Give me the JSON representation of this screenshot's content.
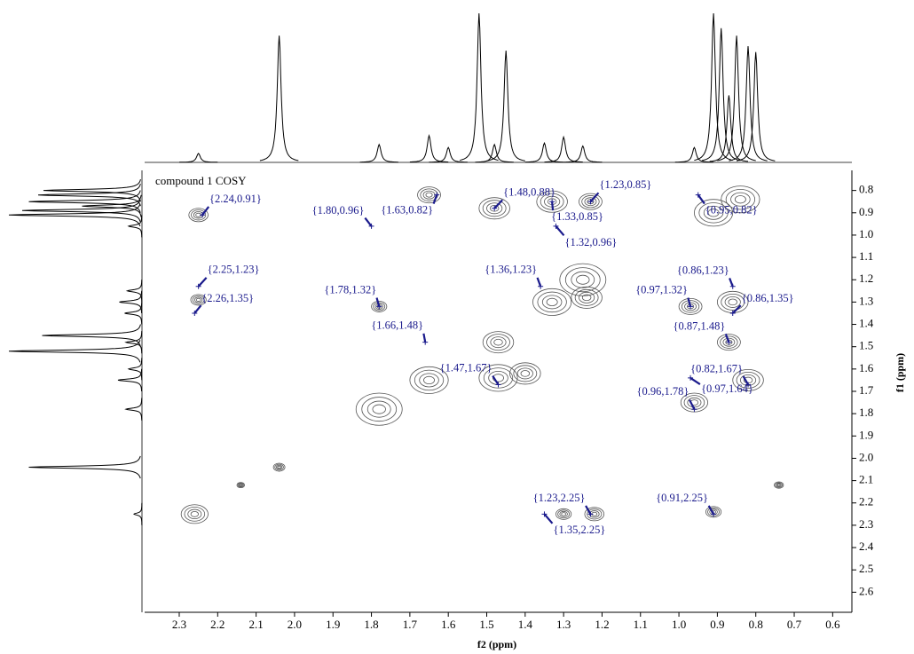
{
  "chart_data": {
    "type": "cosy",
    "title": "compound 1 COSY",
    "xlabel": "f2 (ppm)",
    "ylabel": "f1 (ppm)",
    "xlim": [
      2.39,
      0.55
    ],
    "ylim": [
      0.71,
      2.69
    ],
    "xticks": [
      2.3,
      2.2,
      2.1,
      {
        "value": 2,
        "label": "2.0"
      },
      1.9,
      1.8,
      1.7,
      1.6,
      1.5,
      1.4,
      1.3,
      1.2,
      1.1,
      {
        "value": 1,
        "label": "1.0"
      },
      0.9,
      0.8,
      0.7,
      0.6
    ],
    "yticks": [
      0.8,
      0.9,
      {
        "value": 1,
        "label": "1.0"
      },
      1.1,
      1.2,
      1.3,
      1.4,
      1.5,
      1.6,
      1.7,
      1.8,
      1.9,
      {
        "value": 2,
        "label": "2.0"
      },
      2.1,
      2.2,
      2.3,
      2.4,
      2.5,
      2.6
    ],
    "peaks": {
      "x": [
        2.24,
        1.8,
        1.63,
        1.48,
        1.23,
        1.33,
        1.32,
        0.95,
        2.25,
        2.26,
        1.78,
        1.66,
        1.36,
        0.86,
        0.97,
        0.86,
        0.87,
        1.47,
        0.82,
        0.97,
        0.96,
        1.23,
        1.35,
        0.91
      ],
      "y": [
        0.91,
        0.96,
        0.82,
        0.88,
        0.85,
        0.85,
        0.96,
        0.82,
        1.23,
        1.35,
        1.32,
        1.48,
        1.23,
        1.23,
        1.32,
        1.35,
        1.48,
        1.67,
        1.67,
        1.64,
        1.78,
        2.25,
        2.25,
        2.25
      ],
      "labels": [
        "{2.24,0.91}",
        "{1.80,0.96}",
        "{1.63,0.82}",
        "{1.48,0.88}",
        "{1.23,0.85}",
        "{1.33,0.85}",
        "{1.32,0.96}",
        "{0.95,0.82}",
        "{2.25,1.23}",
        "{2.26,1.35}",
        "{1.78,1.32}",
        "{1.66,1.48}",
        "{1.36,1.23}",
        "{0.86,1.23}",
        "{0.97,1.32}",
        "{0.86,1.35}",
        "{0.87,1.48}",
        "{1.47,1.67}",
        "{0.82,1.67}",
        "{0.97,1.64}",
        "{0.96,1.78}",
        "{1.23,2.25}",
        "{1.35,2.25}",
        "{0.91,2.25}"
      ]
    },
    "contours": {
      "x": [
        2.25,
        1.65,
        1.48,
        1.33,
        1.23,
        0.91,
        0.84,
        2.25,
        1.78,
        1.33,
        1.24,
        1.47,
        0.97,
        0.86,
        0.87,
        1.47,
        1.78,
        1.65,
        0.96,
        0.82,
        2.26,
        2.04,
        2.14,
        1.3,
        1.22,
        0.91,
        0.74,
        1.25,
        1.4
      ],
      "y": [
        0.91,
        0.82,
        0.88,
        0.85,
        0.85,
        0.9,
        0.84,
        1.29,
        1.32,
        1.3,
        1.28,
        1.48,
        1.32,
        1.3,
        1.48,
        1.64,
        1.78,
        1.65,
        1.75,
        1.65,
        2.25,
        2.04,
        2.12,
        2.25,
        2.25,
        2.24,
        2.12,
        1.2,
        1.62
      ],
      "r": [
        0.025,
        0.03,
        0.04,
        0.04,
        0.03,
        0.05,
        0.05,
        0.02,
        0.02,
        0.05,
        0.04,
        0.04,
        0.03,
        0.04,
        0.03,
        0.05,
        0.06,
        0.05,
        0.035,
        0.04,
        0.035,
        0.015,
        0.01,
        0.02,
        0.025,
        0.02,
        0.012,
        0.06,
        0.04
      ]
    },
    "projection": {
      "ppm": [
        2.25,
        2.04,
        1.78,
        1.65,
        1.6,
        1.52,
        1.48,
        1.45,
        1.35,
        1.3,
        1.25,
        0.96,
        0.91,
        0.89,
        0.87,
        0.85,
        0.82,
        0.8
      ],
      "intensity": [
        0.06,
        0.85,
        0.12,
        0.18,
        0.1,
        1.0,
        0.12,
        0.75,
        0.13,
        0.17,
        0.11,
        0.1,
        1.0,
        0.9,
        0.45,
        0.85,
        0.78,
        0.74
      ]
    }
  }
}
